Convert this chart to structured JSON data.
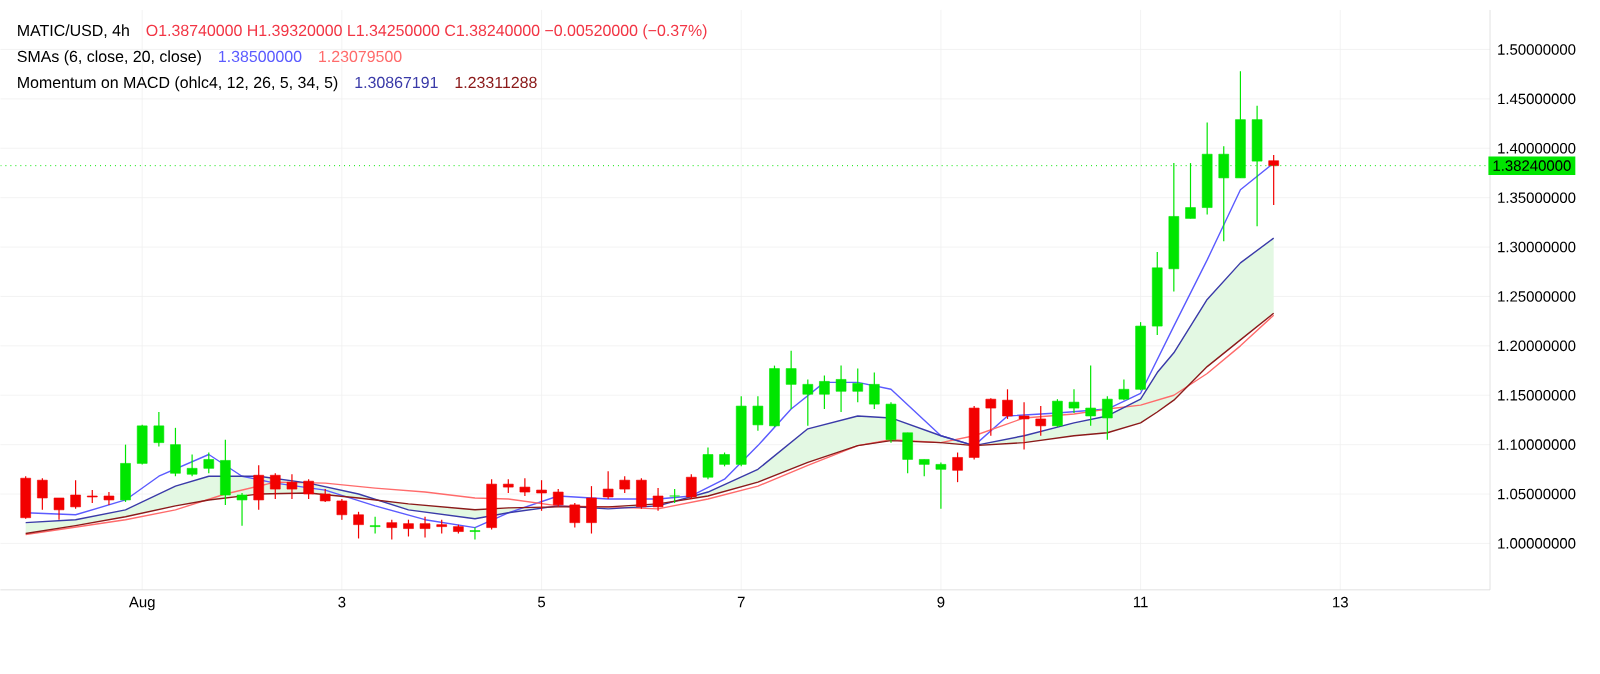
{
  "chart_data": {
    "type": "candlestick",
    "title": "MATIC/USD, 4h",
    "annotations": [
      "O1.38740000 H1.39320000 L1.34250000 C1.38240000 −0.00520000 (−0.37%)",
      "SMAs (6, close, 20, close)",
      "1.38500000",
      "1.23079500",
      "Momentum on MACD (ohlc4, 12, 26, 5, 34, 5)",
      "1.30867191",
      "1.23311288"
    ],
    "x": [
      -0.167,
      0,
      0.167,
      0.333,
      0.5,
      0.667,
      0.833,
      1,
      1.167,
      1.333,
      1.5,
      1.667,
      1.833,
      2,
      2.167,
      2.333,
      2.5,
      2.667,
      2.833,
      3,
      3.167,
      3.333,
      3.5,
      3.667,
      3.833,
      4,
      4.167,
      4.333,
      4.5,
      4.667,
      4.833,
      5,
      5.167,
      5.333,
      5.5,
      5.667,
      5.833,
      6,
      6.167,
      6.333,
      6.5,
      6.667,
      6.833,
      7,
      7.167,
      7.333,
      7.5,
      7.667,
      7.833,
      8,
      8.167,
      8.333,
      8.5,
      8.667,
      8.833,
      9,
      9.167,
      9.333,
      9.5,
      9.667,
      9.833,
      10,
      10.167,
      10.333,
      10.5,
      10.667,
      10.833,
      11,
      11.167,
      11.333,
      11.5,
      11.667,
      11.833,
      12,
      12.167,
      12.333
    ],
    "ohlc": [
      [
        1.066,
        1.068,
        1.025,
        1.026
      ],
      [
        1.064,
        1.066,
        1.034,
        1.046
      ],
      [
        1.046,
        1.046,
        1.024,
        1.034
      ],
      [
        1.049,
        1.064,
        1.035,
        1.037
      ],
      [
        1.048,
        1.054,
        1.041,
        1.047
      ],
      [
        1.048,
        1.052,
        1.039,
        1.044
      ],
      [
        1.044,
        1.1,
        1.042,
        1.081
      ],
      [
        1.081,
        1.12,
        1.08,
        1.119
      ],
      [
        1.102,
        1.133,
        1.098,
        1.119
      ],
      [
        1.071,
        1.117,
        1.068,
        1.1
      ],
      [
        1.07,
        1.09,
        1.068,
        1.076
      ],
      [
        1.076,
        1.092,
        1.071,
        1.085
      ],
      [
        1.049,
        1.105,
        1.039,
        1.084
      ],
      [
        1.044,
        1.051,
        1.018,
        1.049
      ],
      [
        1.069,
        1.079,
        1.034,
        1.044
      ],
      [
        1.069,
        1.071,
        1.045,
        1.055
      ],
      [
        1.062,
        1.07,
        1.045,
        1.055
      ],
      [
        1.063,
        1.065,
        1.045,
        1.05
      ],
      [
        1.05,
        1.055,
        1.042,
        1.043
      ],
      [
        1.043,
        1.045,
        1.024,
        1.029
      ],
      [
        1.029,
        1.032,
        1.005,
        1.019
      ],
      [
        1.017,
        1.027,
        1.01,
        1.018
      ],
      [
        1.021,
        1.024,
        1.004,
        1.016
      ],
      [
        1.02,
        1.024,
        1.007,
        1.015
      ],
      [
        1.02,
        1.027,
        1.006,
        1.015
      ],
      [
        1.019,
        1.024,
        1.01,
        1.017
      ],
      [
        1.017,
        1.019,
        1.01,
        1.012
      ],
      [
        1.012,
        1.016,
        1.004,
        1.013
      ],
      [
        1.06,
        1.065,
        1.014,
        1.016
      ],
      [
        1.06,
        1.065,
        1.051,
        1.057
      ],
      [
        1.057,
        1.066,
        1.048,
        1.052
      ],
      [
        1.054,
        1.064,
        1.033,
        1.051
      ],
      [
        1.052,
        1.055,
        1.037,
        1.039
      ],
      [
        1.039,
        1.041,
        1.016,
        1.021
      ],
      [
        1.046,
        1.058,
        1.01,
        1.021
      ],
      [
        1.055,
        1.073,
        1.045,
        1.047
      ],
      [
        1.064,
        1.068,
        1.051,
        1.055
      ],
      [
        1.064,
        1.066,
        1.035,
        1.037
      ],
      [
        1.048,
        1.056,
        1.033,
        1.037
      ],
      [
        1.048,
        1.055,
        1.041,
        1.048
      ],
      [
        1.067,
        1.07,
        1.045,
        1.047
      ],
      [
        1.067,
        1.097,
        1.065,
        1.09
      ],
      [
        1.08,
        1.092,
        1.078,
        1.09
      ],
      [
        1.08,
        1.149,
        1.078,
        1.139
      ],
      [
        1.12,
        1.149,
        1.114,
        1.139
      ],
      [
        1.119,
        1.18,
        1.118,
        1.177
      ],
      [
        1.161,
        1.195,
        1.136,
        1.177
      ],
      [
        1.151,
        1.166,
        1.119,
        1.161
      ],
      [
        1.151,
        1.17,
        1.136,
        1.164
      ],
      [
        1.154,
        1.18,
        1.133,
        1.166
      ],
      [
        1.154,
        1.177,
        1.143,
        1.162
      ],
      [
        1.141,
        1.173,
        1.136,
        1.161
      ],
      [
        1.105,
        1.143,
        1.102,
        1.141
      ],
      [
        1.085,
        1.112,
        1.071,
        1.112
      ],
      [
        1.08,
        1.085,
        1.068,
        1.085
      ],
      [
        1.075,
        1.082,
        1.035,
        1.08
      ],
      [
        1.087,
        1.092,
        1.062,
        1.074
      ],
      [
        1.137,
        1.139,
        1.085,
        1.087
      ],
      [
        1.146,
        1.147,
        1.109,
        1.137
      ],
      [
        1.145,
        1.156,
        1.126,
        1.129
      ],
      [
        1.129,
        1.143,
        1.095,
        1.126
      ],
      [
        1.126,
        1.139,
        1.109,
        1.119
      ],
      [
        1.119,
        1.146,
        1.118,
        1.144
      ],
      [
        1.137,
        1.156,
        1.132,
        1.143
      ],
      [
        1.129,
        1.18,
        1.119,
        1.137
      ],
      [
        1.127,
        1.149,
        1.105,
        1.146
      ],
      [
        1.146,
        1.166,
        1.145,
        1.156
      ],
      [
        1.156,
        1.224,
        1.155,
        1.22
      ],
      [
        1.22,
        1.295,
        1.211,
        1.279
      ],
      [
        1.278,
        1.385,
        1.255,
        1.331
      ],
      [
        1.329,
        1.385,
        1.329,
        1.34
      ],
      [
        1.34,
        1.426,
        1.333,
        1.394
      ],
      [
        1.37,
        1.402,
        1.306,
        1.394
      ],
      [
        1.37,
        1.478,
        1.37,
        1.429
      ],
      [
        1.387,
        1.443,
        1.321,
        1.429
      ],
      [
        1.3874,
        1.3932,
        1.3425,
        1.3824
      ]
    ],
    "colors": [
      "#f20000",
      "#f20000",
      "#f20000",
      "#f20000",
      "#f20000",
      "#f20000",
      "#00e600",
      "#00e600",
      "#00e600",
      "#00e600",
      "#00e600",
      "#00e600",
      "#00e600",
      "#00e600",
      "#f20000",
      "#f20000",
      "#f20000",
      "#f20000",
      "#f20000",
      "#f20000",
      "#f20000",
      "#00e600",
      "#f20000",
      "#f20000",
      "#f20000",
      "#f20000",
      "#f20000",
      "#00e600",
      "#f20000",
      "#f20000",
      "#f20000",
      "#f20000",
      "#f20000",
      "#f20000",
      "#f20000",
      "#f20000",
      "#f20000",
      "#f20000",
      "#f20000",
      "#00e600",
      "#f20000",
      "#00e600",
      "#00e600",
      "#00e600",
      "#00e600",
      "#00e600",
      "#00e600",
      "#00e600",
      "#00e600",
      "#00e600",
      "#00e600",
      "#00e600",
      "#00e600",
      "#00e600",
      "#00e600",
      "#00e600",
      "#f20000",
      "#f20000",
      "#f20000",
      "#f20000",
      "#f20000",
      "#f20000",
      "#00e600",
      "#00e600",
      "#00e600",
      "#00e600",
      "#00e600",
      "#00e600",
      "#00e600",
      "#00e600",
      "#00e600",
      "#00e600",
      "#00e600",
      "#00e600",
      "#00e600",
      "#f20000"
    ],
    "series": [
      {
        "type": "line",
        "color": "#5b5bff",
        "x": [
          -0.167,
          0.333,
          0.833,
          1.167,
          1.667,
          2,
          2.333,
          2.833,
          3.333,
          3.833,
          4.333,
          4.667,
          5.167,
          5.667,
          6.167,
          6.5,
          6.833,
          7.167,
          7.5,
          7.833,
          8.167,
          8.5,
          9,
          9.333,
          9.667,
          10.167,
          10.667,
          11,
          11.333,
          11.667,
          12,
          12.333
        ],
        "values": [
          1.031,
          1.029,
          1.044,
          1.068,
          1.09,
          1.068,
          1.061,
          1.054,
          1.038,
          1.024,
          1.016,
          1.031,
          1.048,
          1.045,
          1.045,
          1.048,
          1.065,
          1.099,
          1.136,
          1.163,
          1.163,
          1.156,
          1.109,
          1.099,
          1.129,
          1.132,
          1.136,
          1.152,
          1.22,
          1.287,
          1.358,
          1.385
        ]
      },
      {
        "type": "line",
        "color": "#ff6b6b",
        "x": [
          -0.167,
          0.833,
          1.333,
          1.833,
          2.333,
          2.833,
          3.333,
          3.833,
          4.333,
          4.667,
          5.167,
          5.667,
          6.167,
          6.667,
          7.167,
          7.667,
          8.167,
          8.5,
          9,
          9.333,
          9.833,
          10.333,
          10.667,
          11,
          11.333,
          11.667,
          12,
          12.333
        ],
        "values": [
          1.009,
          1.024,
          1.034,
          1.05,
          1.062,
          1.061,
          1.056,
          1.052,
          1.046,
          1.045,
          1.038,
          1.037,
          1.035,
          1.045,
          1.058,
          1.079,
          1.099,
          1.105,
          1.102,
          1.109,
          1.127,
          1.131,
          1.136,
          1.14,
          1.15,
          1.172,
          1.2,
          1.231
        ]
      },
      {
        "type": "line",
        "color": "#3a3aa8",
        "x": [
          -0.167,
          0.333,
          0.833,
          1.333,
          1.667,
          2.167,
          2.667,
          3.167,
          3.667,
          4.333,
          4.667,
          5.167,
          5.667,
          6.167,
          6.667,
          7.167,
          7.667,
          8.167,
          8.5,
          9,
          9.333,
          9.833,
          10.333,
          10.667,
          11,
          11.167,
          11.333,
          11.667,
          12,
          12.333
        ],
        "values": [
          1.021,
          1.024,
          1.034,
          1.058,
          1.068,
          1.068,
          1.061,
          1.05,
          1.034,
          1.025,
          1.031,
          1.038,
          1.035,
          1.038,
          1.052,
          1.075,
          1.116,
          1.129,
          1.127,
          1.109,
          1.099,
          1.109,
          1.122,
          1.129,
          1.146,
          1.173,
          1.193,
          1.247,
          1.284,
          1.309
        ],
        "upper": [
          1.021,
          1.024,
          1.034,
          1.058,
          1.068,
          1.068,
          1.061,
          1.05,
          1.034,
          1.025,
          1.031,
          1.038,
          1.035,
          1.038,
          1.052,
          1.075,
          1.116,
          1.129,
          1.127,
          1.109,
          1.099,
          1.109,
          1.122,
          1.129,
          1.146,
          1.173,
          1.193,
          1.247,
          1.284,
          1.309
        ],
        "lower": [
          1.01,
          1.018,
          1.027,
          1.038,
          1.044,
          1.05,
          1.051,
          1.046,
          1.04,
          1.034,
          1.036,
          1.037,
          1.037,
          1.04,
          1.048,
          1.062,
          1.082,
          1.099,
          1.104,
          1.102,
          1.099,
          1.102,
          1.109,
          1.112,
          1.122,
          1.133,
          1.145,
          1.179,
          1.206,
          1.233
        ]
      },
      {
        "type": "line",
        "color": "#8b1a1a",
        "x": [
          -0.167,
          0.333,
          0.833,
          1.333,
          1.667,
          2.167,
          2.667,
          3.167,
          3.667,
          4.333,
          4.667,
          5.167,
          5.667,
          6.167,
          6.667,
          7.167,
          7.667,
          8.167,
          8.5,
          9,
          9.333,
          9.833,
          10.333,
          10.667,
          11,
          11.167,
          11.333,
          11.667,
          12,
          12.333
        ],
        "values": [
          1.01,
          1.018,
          1.027,
          1.038,
          1.044,
          1.05,
          1.051,
          1.046,
          1.04,
          1.034,
          1.036,
          1.037,
          1.037,
          1.04,
          1.048,
          1.062,
          1.082,
          1.099,
          1.104,
          1.102,
          1.099,
          1.102,
          1.109,
          1.112,
          1.122,
          1.133,
          1.145,
          1.179,
          1.206,
          1.233
        ]
      }
    ],
    "ref_lines": [
      {
        "axis": "y",
        "value": 1.3824,
        "label": "1.38240000",
        "color": "#00e600",
        "line_style": "dotted"
      }
    ],
    "xlim": [
      -0.42,
      14.5
    ],
    "ylim": [
      0.953,
      1.54
    ],
    "xticks": [
      {
        "value": 1,
        "label": "Aug"
      },
      3,
      5,
      7,
      9,
      11,
      13
    ],
    "yticks": [
      {
        "value": 1.0,
        "label": "1.00000000"
      },
      {
        "value": 1.05,
        "label": "1.05000000"
      },
      {
        "value": 1.1,
        "label": "1.10000000"
      },
      {
        "value": 1.15,
        "label": "1.15000000"
      },
      {
        "value": 1.2,
        "label": "1.20000000"
      },
      {
        "value": 1.25,
        "label": "1.25000000"
      },
      {
        "value": 1.3,
        "label": "1.30000000"
      },
      {
        "value": 1.35,
        "label": "1.35000000"
      },
      {
        "value": 1.4,
        "label": "1.40000000"
      },
      {
        "value": 1.45,
        "label": "1.45000000"
      },
      {
        "value": 1.5,
        "label": "1.50000000"
      }
    ],
    "grid": true
  }
}
